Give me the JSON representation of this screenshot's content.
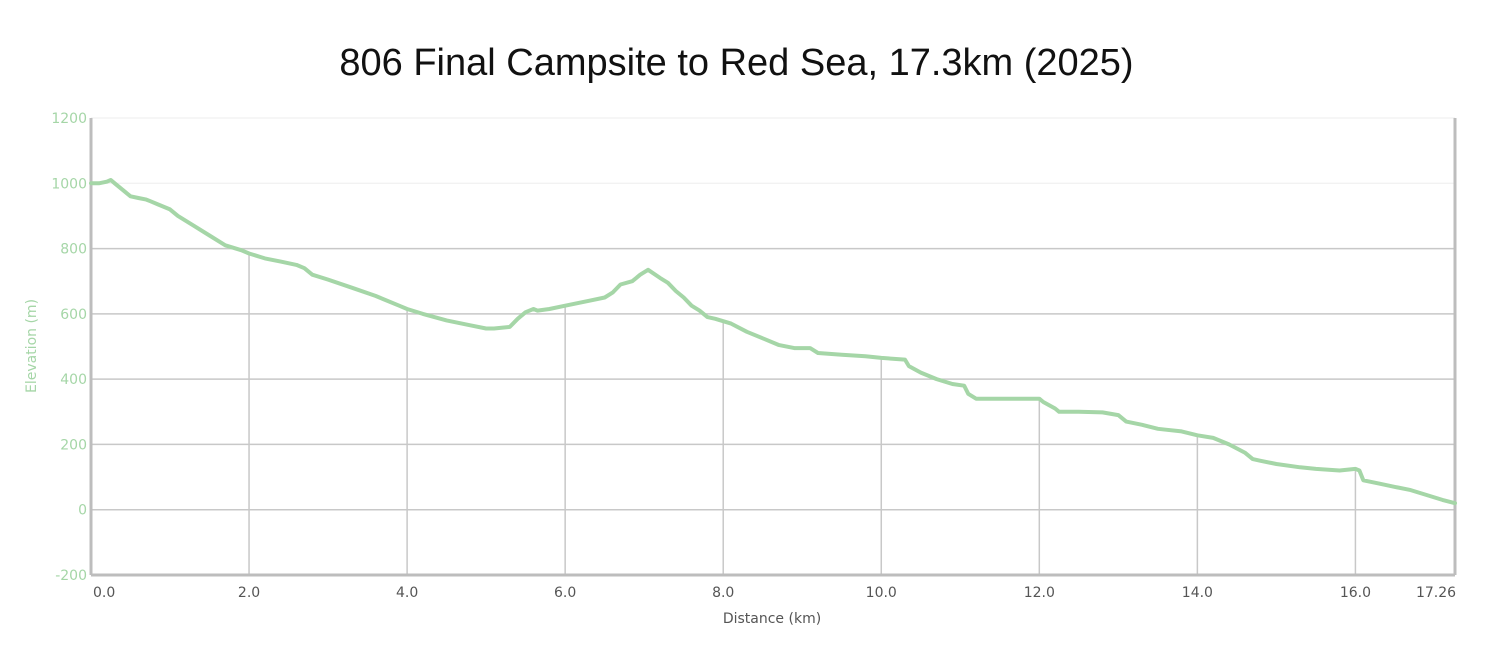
{
  "chart_data": {
    "type": "line",
    "title": "806 Final Campsite to Red Sea, 17.3km (2025)",
    "xlabel": "Distance (km)",
    "ylabel": "Elevation (m)",
    "xlim": [
      0,
      17.26
    ],
    "ylim": [
      -200,
      1200
    ],
    "x_ticks": [
      0,
      2,
      4,
      6,
      8,
      10,
      12,
      14,
      16,
      17.26
    ],
    "x_tick_labels": [
      "0.0",
      "2.0",
      "4.0",
      "6.0",
      "8.0",
      "10.0",
      "12.0",
      "14.0",
      "16.0",
      "17.26"
    ],
    "y_ticks": [
      -200,
      0,
      200,
      400,
      600,
      800,
      1000,
      1200
    ],
    "y_tick_labels": [
      "-200",
      "0",
      "200",
      "400",
      "600",
      "800",
      "1000",
      "1200"
    ],
    "grid": true,
    "line_color": "#a5d6a7",
    "axis_label_color": "#a5d6a7",
    "series": [
      {
        "x": [
          0,
          0.1,
          0.2,
          0.25,
          0.3,
          0.4,
          0.5,
          0.6,
          0.7,
          0.75,
          0.85,
          1.0,
          1.1,
          1.3,
          1.5,
          1.7,
          1.9,
          2.0,
          2.2,
          2.4,
          2.6,
          2.7,
          2.8,
          3.0,
          3.3,
          3.6,
          3.9,
          4.0,
          4.2,
          4.5,
          4.8,
          5.0,
          5.1,
          5.3,
          5.4,
          5.5,
          5.6,
          5.65,
          5.8,
          6.0,
          6.3,
          6.5,
          6.6,
          6.7,
          6.85,
          6.95,
          7.05,
          7.2,
          7.3,
          7.4,
          7.5,
          7.6,
          7.7,
          7.8,
          7.9,
          8.1,
          8.3,
          8.5,
          8.7,
          8.9,
          9.1,
          9.2,
          9.5,
          9.8,
          10.0,
          10.3,
          10.35,
          10.5,
          10.7,
          10.9,
          11.05,
          11.1,
          11.2,
          11.4,
          11.6,
          11.8,
          12.0,
          12.05,
          12.2,
          12.25,
          12.5,
          12.8,
          13.0,
          13.1,
          13.3,
          13.5,
          13.6,
          13.8,
          14.0,
          14.2,
          14.4,
          14.6,
          14.7,
          14.8,
          15.0,
          15.3,
          15.5,
          15.8,
          16.0,
          16.05,
          16.1,
          16.3,
          16.5,
          16.7,
          16.9,
          17.1,
          17.26
        ],
        "y": [
          1000,
          1000,
          1005,
          1010,
          1000,
          980,
          960,
          955,
          950,
          945,
          935,
          920,
          900,
          870,
          840,
          810,
          795,
          785,
          770,
          760,
          750,
          740,
          720,
          705,
          680,
          655,
          625,
          615,
          600,
          580,
          565,
          555,
          555,
          560,
          585,
          605,
          615,
          610,
          615,
          625,
          640,
          650,
          665,
          690,
          700,
          720,
          735,
          710,
          695,
          670,
          650,
          625,
          610,
          590,
          585,
          570,
          545,
          525,
          505,
          495,
          495,
          480,
          475,
          470,
          465,
          460,
          440,
          420,
          400,
          385,
          380,
          355,
          340,
          340,
          340,
          340,
          340,
          330,
          310,
          300,
          300,
          298,
          290,
          270,
          260,
          248,
          245,
          240,
          228,
          220,
          200,
          175,
          155,
          150,
          140,
          130,
          125,
          120,
          125,
          120,
          90,
          80,
          70,
          60,
          45,
          30,
          20
        ]
      }
    ]
  }
}
